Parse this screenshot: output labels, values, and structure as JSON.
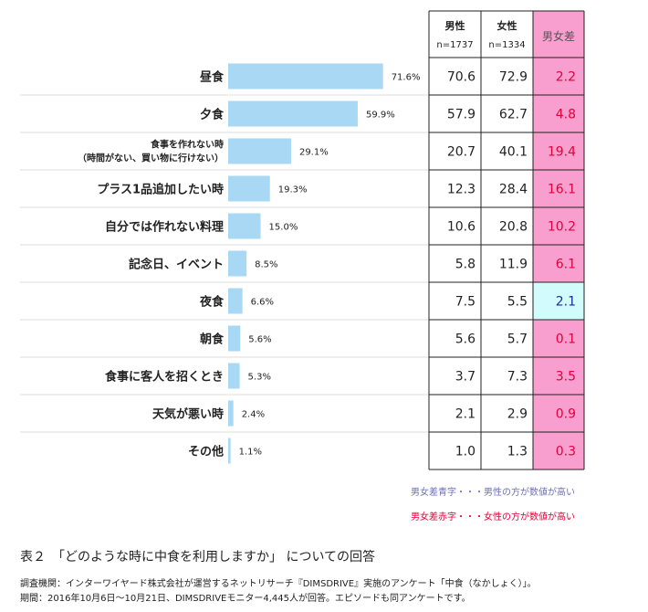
{
  "chart_data": {
    "type": "bar",
    "orientation": "horizontal",
    "categories": [
      "昼食",
      "夕食",
      [
        "食事を作れない時",
        "（時間がない、買い物に行けない）"
      ],
      "プラス1品追加したい時",
      "自分では作れない料理",
      "記念日、イベント",
      "夜食",
      "朝食",
      "食事に客人を招くとき",
      "天気が悪い時",
      "その他"
    ],
    "values": [
      71.6,
      59.9,
      29.1,
      19.3,
      15.0,
      8.5,
      6.6,
      5.6,
      5.3,
      2.4,
      1.1
    ],
    "value_labels": [
      "71.6%",
      "59.9%",
      "29.1%",
      "19.3%",
      "15.0%",
      "8.5%",
      "6.6%",
      "5.6%",
      "5.3%",
      "2.4%",
      "1.1%"
    ],
    "bar_color": "#a9d8f5",
    "table": {
      "headers": [
        {
          "label": "男性",
          "sub": "n=1737"
        },
        {
          "label": "女性",
          "sub": "n=1334"
        },
        {
          "label": "男女差",
          "sub": ""
        }
      ],
      "male": [
        "70.6",
        "57.9",
        "20.7",
        "12.3",
        "10.6",
        "5.8",
        "7.5",
        "5.6",
        "3.7",
        "2.1",
        "1.0"
      ],
      "female": [
        "72.9",
        "62.7",
        "40.1",
        "28.4",
        "20.8",
        "11.9",
        "5.5",
        "5.7",
        "7.3",
        "2.9",
        "1.3"
      ],
      "diff": [
        "2.2",
        "4.8",
        "19.4",
        "16.1",
        "10.2",
        "6.1",
        "2.1",
        "0.1",
        "3.5",
        "0.9",
        "0.3"
      ],
      "diff_dir": [
        "female",
        "female",
        "female",
        "female",
        "female",
        "female",
        "male",
        "female",
        "female",
        "female",
        "female"
      ],
      "colors": {
        "female_bg": "#f99fcf",
        "male_bg": "#d2fbfb",
        "female_text": "#e4003a",
        "male_text": "#1d2b9b",
        "header_diff_bg": "#f99fcf"
      }
    }
  },
  "legend": {
    "blue_note": "男女差青字・・・男性の方が数値が高い",
    "red_note": "男女差赤字・・・女性の方が数値が高い"
  },
  "caption": "表２　「どのような時に中食を利用しますか」 についての回答",
  "notes": [
    "調査機関：インターワイヤード株式会社が運営するネットリサーチ『DIMSDRIVE』実施のアンケート「中食（なかしょく）」。",
    "期間：2016年10月6日～10月21日、DIMSDRIVEモニター4,445人が回答。エピソードも同アンケートです。"
  ]
}
